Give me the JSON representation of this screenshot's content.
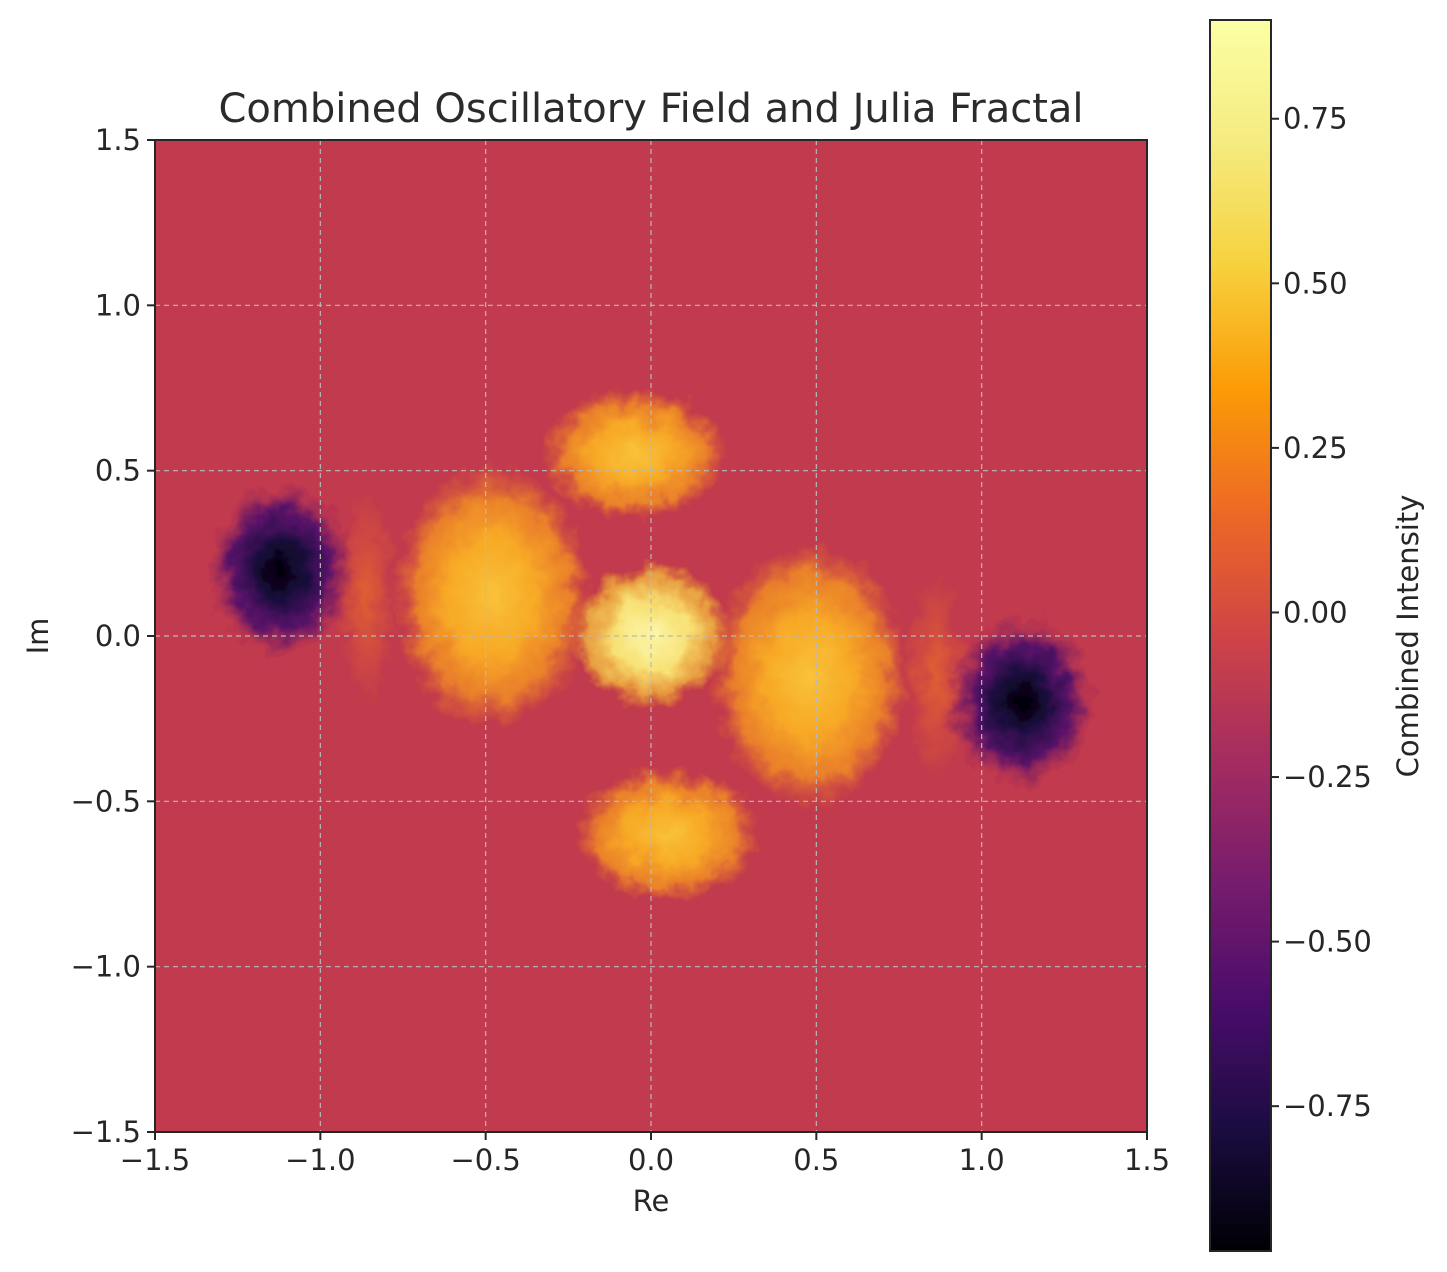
{
  "chart_data": {
    "type": "heatmap",
    "title": "Combined Oscillatory Field and Julia Fractal",
    "xlabel": "Re",
    "ylabel": "Im",
    "xlim": [
      -1.5,
      1.5
    ],
    "ylim": [
      -1.5,
      1.5
    ],
    "x_ticks": [
      -1.5,
      -1.0,
      -0.5,
      0.0,
      0.5,
      1.0,
      1.5
    ],
    "x_tick_labels": [
      "−1.5",
      "−1.0",
      "−0.5",
      "0.0",
      "0.5",
      "1.0",
      "1.5"
    ],
    "y_ticks": [
      1.5,
      1.0,
      0.5,
      0.0,
      -0.5,
      -1.0,
      -1.5
    ],
    "y_tick_labels": [
      "1.5",
      "1.0",
      "0.5",
      "0.0",
      "−0.5",
      "−1.0",
      "−1.5"
    ],
    "grid": true,
    "colormap": "inferno",
    "colorbar": {
      "label": "Combined Intensity",
      "range": [
        -0.97,
        0.9
      ],
      "ticks": [
        0.75,
        0.5,
        0.25,
        0.0,
        -0.25,
        -0.5,
        -0.75
      ],
      "tick_labels": [
        "0.75",
        "0.50",
        "0.25",
        "0.00",
        "−0.25",
        "−0.50",
        "−0.75"
      ]
    },
    "features": [
      {
        "label": "bright-core",
        "re": 0.0,
        "im": 0.0,
        "value": 0.85
      },
      {
        "label": "spiral-lobe-left",
        "re": -0.48,
        "im": 0.12,
        "value": 0.65
      },
      {
        "label": "spiral-lobe-right",
        "re": 0.48,
        "im": -0.12,
        "value": 0.65
      },
      {
        "label": "upper-lobe",
        "re": -0.05,
        "im": 0.55,
        "value": 0.55
      },
      {
        "label": "lower-lobe",
        "re": 0.05,
        "im": -0.6,
        "value": 0.55
      },
      {
        "label": "dark-spiral-left",
        "re": -1.12,
        "im": 0.2,
        "value": -0.95
      },
      {
        "label": "dark-spiral-right",
        "re": 1.12,
        "im": -0.2,
        "value": -0.95
      },
      {
        "label": "background",
        "value": 0.05
      }
    ],
    "colors": {
      "background": "#c23a4d",
      "grid": "#b9b9b9"
    }
  }
}
